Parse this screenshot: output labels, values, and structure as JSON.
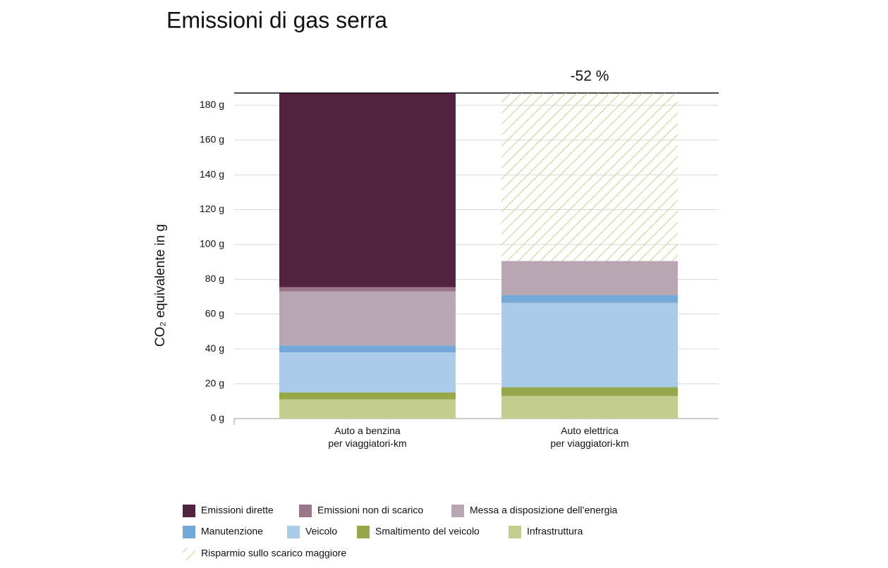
{
  "chart_data": {
    "type": "stacked-bar",
    "title": "Emissioni di gas serra",
    "y_label": "CO₂ equivalente in g",
    "annotation": "-52 %",
    "categories": [
      "Auto a benzina\nper viaggiatori-km",
      "Auto elettrica\nper viaggiatori-km"
    ],
    "series": [
      {
        "name": "Emissioni dirette",
        "color": "#52233f",
        "values": [
          111.5,
          0
        ]
      },
      {
        "name": "Emissioni non di scarico",
        "color": "#9a7689",
        "values": [
          2.5,
          0
        ]
      },
      {
        "name": "Messa a disposizione dell’energia",
        "color": "#b8a6b2",
        "values": [
          31,
          19.5
        ]
      },
      {
        "name": "Manutenzione",
        "color": "#74a8d8",
        "values": [
          4,
          4.5
        ]
      },
      {
        "name": "Veicolo",
        "color": "#abcbe8",
        "values": [
          23,
          48.5
        ]
      },
      {
        "name": "Smaltimento del veicolo",
        "color": "#96a84a",
        "values": [
          4,
          5
        ]
      },
      {
        "name": "Infrastruttura",
        "color": "#c3cd8e",
        "values": [
          11,
          13
        ]
      },
      {
        "name": "Risparmio sullo scarico maggiore",
        "color": "#c3d38e",
        "pattern": "hatch",
        "values": [
          0,
          96.5
        ]
      }
    ],
    "ylim": [
      0,
      187
    ],
    "yticks": [
      {
        "value": 0,
        "label": "0 g"
      },
      {
        "value": 20,
        "label": "20 g"
      },
      {
        "value": 40,
        "label": "40 g"
      },
      {
        "value": 60,
        "label": "60 g"
      },
      {
        "value": 80,
        "label": "80 g"
      },
      {
        "value": 100,
        "label": "100 g"
      },
      {
        "value": 120,
        "label": "120 g"
      },
      {
        "value": 140,
        "label": "140 g"
      },
      {
        "value": 160,
        "label": "160 g"
      },
      {
        "value": 180,
        "label": "180 g"
      }
    ],
    "grid": true
  }
}
